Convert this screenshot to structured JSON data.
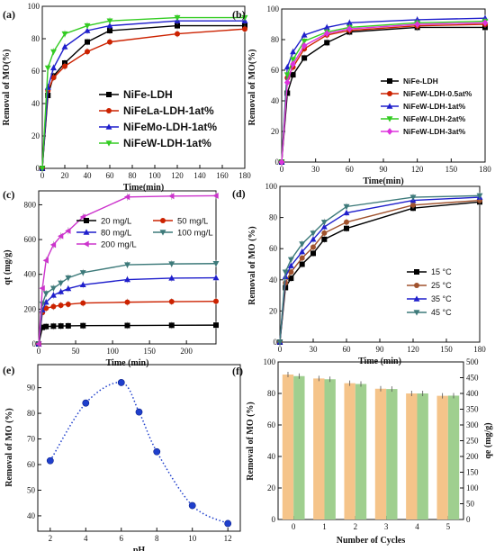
{
  "chart_data": [
    {
      "id": "a",
      "type": "line",
      "panel_label": "(a)",
      "xlabel": "Time(min)",
      "ylabel": "Removal of MO(%)",
      "xlim": [
        0,
        180
      ],
      "ylim": [
        0,
        100
      ],
      "xticks": [
        0,
        20,
        40,
        60,
        80,
        100,
        120,
        140,
        160,
        180
      ],
      "yticks": [
        0,
        20,
        40,
        60,
        80,
        100
      ],
      "legend_position": "center-right",
      "grid": false,
      "x": [
        0,
        5,
        10,
        20,
        40,
        60,
        120,
        180
      ],
      "series": [
        {
          "name": "NiFe-LDH",
          "color": "#000000",
          "marker": "square",
          "values": [
            0,
            45,
            57,
            65,
            78,
            85,
            88,
            88
          ]
        },
        {
          "name": "NiFeLa-LDH-1at%",
          "color": "#cc2200",
          "marker": "circle",
          "values": [
            0,
            48,
            56,
            63,
            72,
            78,
            83,
            86
          ]
        },
        {
          "name": "NiFeMo-LDH-1at%",
          "color": "#1f1fcc",
          "marker": "triangle-up",
          "values": [
            0,
            50,
            62,
            75,
            85,
            88,
            91,
            91
          ]
        },
        {
          "name": "NiFeW-LDH-1at%",
          "color": "#33cc22",
          "marker": "triangle-down",
          "values": [
            0,
            62,
            72,
            83,
            88,
            91,
            93,
            93
          ]
        }
      ]
    },
    {
      "id": "b",
      "type": "line",
      "panel_label": "(b)",
      "xlabel": "Time(min)",
      "ylabel": "Removal of MO(%)",
      "xlim": [
        0,
        180
      ],
      "ylim": [
        0,
        100
      ],
      "xticks": [
        0,
        30,
        60,
        90,
        120,
        150,
        180
      ],
      "yticks": [
        0,
        20,
        40,
        60,
        80,
        100
      ],
      "legend_position": "bottom-right",
      "grid": false,
      "x": [
        0,
        5,
        10,
        20,
        40,
        60,
        120,
        180
      ],
      "series": [
        {
          "name": "NiFe-LDH",
          "color": "#000000",
          "marker": "square",
          "values": [
            0,
            45,
            57,
            68,
            78,
            85,
            88,
            88
          ]
        },
        {
          "name": "NiFeW-LDH-0.5at%",
          "color": "#cc2200",
          "marker": "circle",
          "values": [
            0,
            55,
            62,
            74,
            83,
            86,
            89,
            90
          ]
        },
        {
          "name": "NiFeW-LDH-1at%",
          "color": "#1f1fcc",
          "marker": "triangle-up",
          "values": [
            0,
            62,
            72,
            83,
            88,
            91,
            93,
            94
          ]
        },
        {
          "name": "NiFeW-LDH-2at%",
          "color": "#33cc22",
          "marker": "triangle-down",
          "values": [
            0,
            57,
            67,
            79,
            85,
            88,
            91,
            92
          ]
        },
        {
          "name": "NiFeW-LDH-3at%",
          "color": "#dd33dd",
          "marker": "diamond",
          "values": [
            0,
            52,
            64,
            76,
            84,
            87,
            90,
            91
          ]
        }
      ]
    },
    {
      "id": "c",
      "type": "line",
      "panel_label": "(c)",
      "xlabel": "Time (min)",
      "ylabel": "qt (mg/g)",
      "xlim": [
        0,
        240
      ],
      "ylim": [
        0,
        880
      ],
      "xticks": [
        0,
        50,
        100,
        150,
        200
      ],
      "yticks": [
        0,
        200,
        400,
        600,
        800
      ],
      "legend_position": "top",
      "grid": false,
      "x": [
        0,
        5,
        10,
        20,
        30,
        40,
        60,
        120,
        180,
        240
      ],
      "series": [
        {
          "name": "20 mg/L",
          "color": "#000000",
          "marker": "square",
          "values": [
            0,
            95,
            100,
            102,
            103,
            104,
            105,
            106,
            107,
            108
          ]
        },
        {
          "name": "50 mg/L",
          "color": "#cc2200",
          "marker": "circle",
          "values": [
            0,
            180,
            205,
            215,
            222,
            228,
            235,
            240,
            243,
            245
          ]
        },
        {
          "name": "80 mg/L",
          "color": "#1f1fcc",
          "marker": "triangle-up",
          "values": [
            0,
            195,
            240,
            280,
            300,
            318,
            340,
            370,
            378,
            380
          ]
        },
        {
          "name": "100 mg/L",
          "color": "#3d7a7a",
          "marker": "triangle-down",
          "values": [
            0,
            230,
            290,
            320,
            350,
            380,
            410,
            455,
            460,
            462
          ]
        },
        {
          "name": "200 mg/L",
          "color": "#cc33cc",
          "marker": "triangle-left",
          "values": [
            0,
            320,
            480,
            570,
            620,
            650,
            730,
            845,
            850,
            852
          ]
        }
      ]
    },
    {
      "id": "d",
      "type": "line",
      "panel_label": "(d)",
      "xlabel": "Time (min)",
      "ylabel": "Removal of MO (%)",
      "xlim": [
        0,
        180
      ],
      "ylim": [
        0,
        100
      ],
      "xticks": [
        0,
        30,
        60,
        90,
        120,
        150,
        180
      ],
      "yticks": [
        0,
        20,
        40,
        60,
        80,
        100
      ],
      "legend_position": "bottom-right",
      "grid": false,
      "x": [
        0,
        5,
        10,
        20,
        30,
        40,
        60,
        120,
        180
      ],
      "series": [
        {
          "name": "15 °C",
          "color": "#000000",
          "marker": "square",
          "values": [
            0,
            35,
            41,
            50,
            57,
            66,
            73,
            86,
            90
          ]
        },
        {
          "name": "25 °C",
          "color": "#a0522d",
          "marker": "circle",
          "values": [
            0,
            38,
            45,
            54,
            61,
            70,
            77,
            88,
            91
          ]
        },
        {
          "name": "35 °C",
          "color": "#1f1fcc",
          "marker": "triangle-up",
          "values": [
            0,
            42,
            49,
            58,
            66,
            74,
            83,
            91,
            93
          ]
        },
        {
          "name": "45 °C",
          "color": "#3d7a7a",
          "marker": "triangle-down",
          "values": [
            0,
            45,
            53,
            63,
            70,
            77,
            87,
            93,
            94
          ]
        }
      ]
    },
    {
      "id": "e",
      "type": "scatter",
      "panel_label": "(e)",
      "xlabel": "pH",
      "ylabel": "Removal of MO (%)",
      "xlim": [
        1.3,
        12.7
      ],
      "ylim": [
        34,
        99
      ],
      "xticks": [
        2,
        4,
        6,
        8,
        10,
        12
      ],
      "yticks": [
        40,
        50,
        60,
        70,
        80,
        90
      ],
      "grid": false,
      "series": [
        {
          "name": "",
          "color": "#1f3fcc",
          "marker": "circle",
          "x": [
            2,
            4,
            6,
            7,
            8,
            10,
            12
          ],
          "values": [
            61.5,
            84,
            92,
            80.5,
            65,
            44,
            37
          ]
        }
      ]
    },
    {
      "id": "f",
      "type": "bar",
      "panel_label": "(f)",
      "xlabel": "Number of Cycles",
      "ylabel": "Removal of MO (%)",
      "ylabel_right": "qe (mg/g)",
      "categories": [
        "0",
        "1",
        "2",
        "3",
        "4",
        "5"
      ],
      "ylim": [
        0,
        100
      ],
      "ylim_right": [
        0,
        500
      ],
      "yticks": [
        0,
        20,
        40,
        60,
        80,
        100
      ],
      "yticks_right": [
        0,
        50,
        100,
        150,
        200,
        250,
        300,
        350,
        400,
        450,
        500
      ],
      "grid": false,
      "series": [
        {
          "name": "Removal of MO (%)",
          "axis": "left",
          "color": "#f5c48a",
          "values": [
            92,
            89.5,
            86.5,
            83,
            80,
            78.5
          ]
        },
        {
          "name": "qe (mg/g)",
          "axis": "right",
          "color": "#9fcf8f",
          "values": [
            455,
            445,
            430,
            414,
            400,
            393
          ]
        }
      ]
    }
  ]
}
